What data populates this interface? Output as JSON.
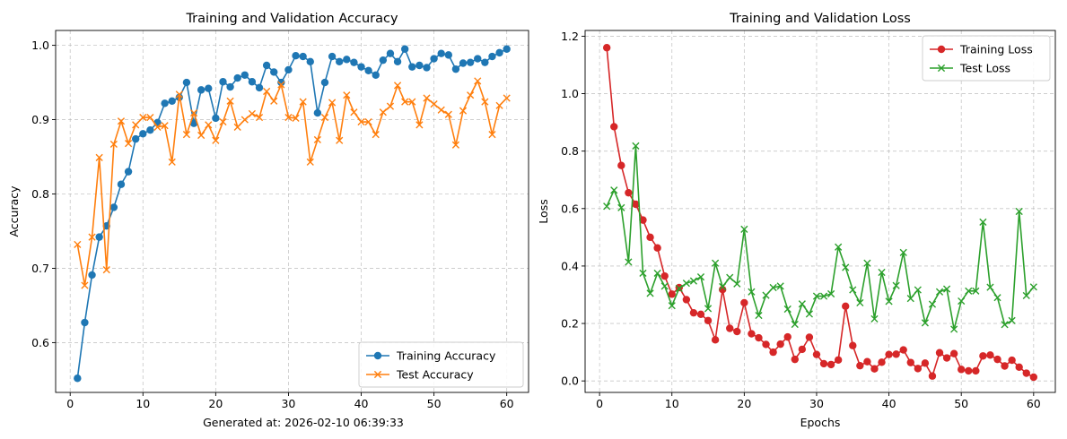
{
  "footer_text": "Generated at: 2026-02-10 06:39:33",
  "chart_data": [
    {
      "type": "line",
      "title": "Training and Validation Accuracy",
      "xlabel": "",
      "ylabel": "Accuracy",
      "xlim": [
        -2,
        63
      ],
      "ylim": [
        0.533,
        1.02
      ],
      "xticks": [
        0,
        10,
        20,
        30,
        40,
        50,
        60
      ],
      "yticks": [
        0.6,
        0.7,
        0.8,
        0.9,
        1.0
      ],
      "ytick_labels": [
        "0.6",
        "0.7",
        "0.8",
        "0.9",
        "1.0"
      ],
      "grid": true,
      "legend_position": "bottom-right",
      "x": [
        1,
        2,
        3,
        4,
        5,
        6,
        7,
        8,
        9,
        10,
        11,
        12,
        13,
        14,
        15,
        16,
        17,
        18,
        19,
        20,
        21,
        22,
        23,
        24,
        25,
        26,
        27,
        28,
        29,
        30,
        31,
        32,
        33,
        34,
        35,
        36,
        37,
        38,
        39,
        40,
        41,
        42,
        43,
        44,
        45,
        46,
        47,
        48,
        49,
        50,
        51,
        52,
        53,
        54,
        55,
        56,
        57,
        58,
        59,
        60
      ],
      "series": [
        {
          "name": "Training Accuracy",
          "color": "#1f77b4",
          "marker": "circle",
          "values": [
            0.552,
            0.627,
            0.691,
            0.742,
            0.757,
            0.782,
            0.813,
            0.83,
            0.874,
            0.881,
            0.886,
            0.896,
            0.922,
            0.925,
            0.93,
            0.95,
            0.895,
            0.94,
            0.942,
            0.902,
            0.951,
            0.944,
            0.956,
            0.96,
            0.951,
            0.943,
            0.973,
            0.964,
            0.95,
            0.967,
            0.986,
            0.985,
            0.978,
            0.909,
            0.95,
            0.985,
            0.978,
            0.981,
            0.977,
            0.971,
            0.966,
            0.96,
            0.98,
            0.989,
            0.978,
            0.995,
            0.971,
            0.973,
            0.97,
            0.982,
            0.989,
            0.987,
            0.968,
            0.976,
            0.977,
            0.982,
            0.977,
            0.985,
            0.99,
            0.995
          ]
        },
        {
          "name": "Test Accuracy",
          "color": "#ff7f0e",
          "marker": "x",
          "values": [
            0.732,
            0.677,
            0.742,
            0.849,
            0.698,
            0.867,
            0.898,
            0.868,
            0.893,
            0.903,
            0.903,
            0.89,
            0.892,
            0.843,
            0.934,
            0.88,
            0.909,
            0.879,
            0.893,
            0.872,
            0.897,
            0.925,
            0.89,
            0.9,
            0.908,
            0.903,
            0.938,
            0.925,
            0.947,
            0.903,
            0.902,
            0.924,
            0.843,
            0.873,
            0.903,
            0.923,
            0.872,
            0.933,
            0.91,
            0.897,
            0.897,
            0.88,
            0.91,
            0.918,
            0.946,
            0.924,
            0.924,
            0.893,
            0.929,
            0.921,
            0.913,
            0.907,
            0.866,
            0.912,
            0.933,
            0.952,
            0.924,
            0.88,
            0.919,
            0.929
          ]
        }
      ]
    },
    {
      "type": "line",
      "title": "Training and Validation Loss",
      "xlabel": "Epochs",
      "ylabel": "Loss",
      "xlim": [
        -2,
        63
      ],
      "ylim": [
        -0.04,
        1.22
      ],
      "xticks": [
        0,
        10,
        20,
        30,
        40,
        50,
        60
      ],
      "yticks": [
        0.0,
        0.2,
        0.4,
        0.6,
        0.8,
        1.0,
        1.2
      ],
      "ytick_labels": [
        "0.0",
        "0.2",
        "0.4",
        "0.6",
        "0.8",
        "1.0",
        "1.2"
      ],
      "grid": true,
      "legend_position": "top-right",
      "x": [
        1,
        2,
        3,
        4,
        5,
        6,
        7,
        8,
        9,
        10,
        11,
        12,
        13,
        14,
        15,
        16,
        17,
        18,
        19,
        20,
        21,
        22,
        23,
        24,
        25,
        26,
        27,
        28,
        29,
        30,
        31,
        32,
        33,
        34,
        35,
        36,
        37,
        38,
        39,
        40,
        41,
        42,
        43,
        44,
        45,
        46,
        47,
        48,
        49,
        50,
        51,
        52,
        53,
        54,
        55,
        56,
        57,
        58,
        59,
        60
      ],
      "series": [
        {
          "name": "Training Loss",
          "color": "#d62728",
          "marker": "circle",
          "values": [
            1.16,
            0.885,
            0.75,
            0.655,
            0.615,
            0.56,
            0.5,
            0.463,
            0.365,
            0.302,
            0.325,
            0.283,
            0.237,
            0.232,
            0.21,
            0.143,
            0.318,
            0.183,
            0.172,
            0.272,
            0.164,
            0.15,
            0.127,
            0.1,
            0.128,
            0.153,
            0.075,
            0.11,
            0.152,
            0.092,
            0.06,
            0.057,
            0.073,
            0.26,
            0.123,
            0.053,
            0.067,
            0.042,
            0.065,
            0.092,
            0.093,
            0.108,
            0.064,
            0.043,
            0.062,
            0.017,
            0.098,
            0.08,
            0.095,
            0.04,
            0.035,
            0.035,
            0.087,
            0.09,
            0.075,
            0.052,
            0.072,
            0.048,
            0.027,
            0.013
          ]
        },
        {
          "name": "Test Loss",
          "color": "#2ca02c",
          "marker": "x",
          "values": [
            0.608,
            0.664,
            0.603,
            0.414,
            0.818,
            0.375,
            0.305,
            0.375,
            0.33,
            0.262,
            0.322,
            0.34,
            0.348,
            0.362,
            0.252,
            0.41,
            0.328,
            0.36,
            0.338,
            0.528,
            0.31,
            0.228,
            0.298,
            0.325,
            0.33,
            0.25,
            0.197,
            0.268,
            0.233,
            0.295,
            0.295,
            0.303,
            0.466,
            0.395,
            0.317,
            0.272,
            0.41,
            0.216,
            0.378,
            0.277,
            0.332,
            0.447,
            0.287,
            0.317,
            0.202,
            0.267,
            0.31,
            0.32,
            0.18,
            0.278,
            0.313,
            0.313,
            0.553,
            0.326,
            0.29,
            0.196,
            0.21,
            0.59,
            0.297,
            0.327
          ]
        }
      ]
    }
  ]
}
